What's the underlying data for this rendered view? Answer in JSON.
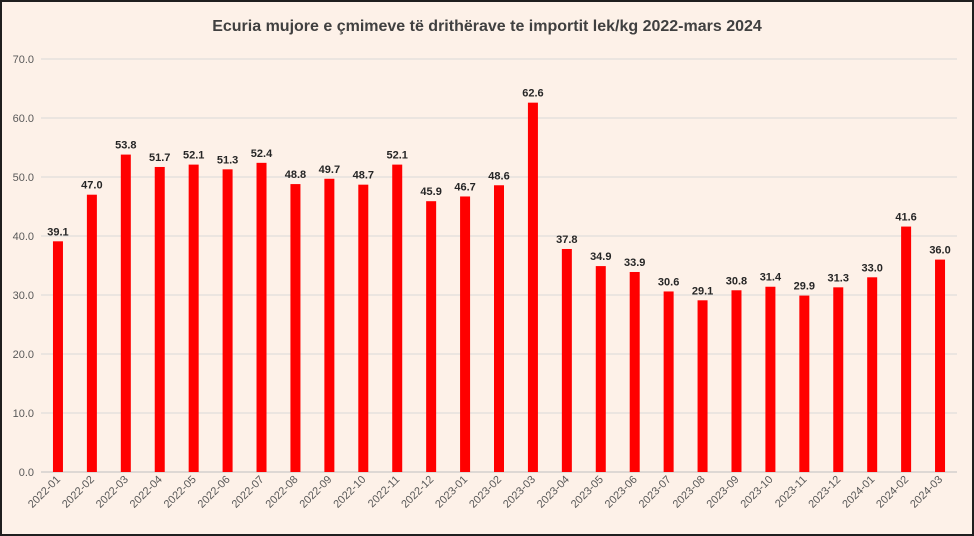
{
  "chart_data": {
    "type": "bar",
    "title": "Ecuria mujore e çmimeve të drithërave te importit lek/kg 2022-mars 2024",
    "xlabel": "",
    "ylabel": "",
    "ylim": [
      0,
      70
    ],
    "yticks": [
      "0.0",
      "10.0",
      "20.0",
      "30.0",
      "40.0",
      "50.0",
      "60.0",
      "70.0"
    ],
    "grid": true,
    "legend": "none",
    "bar_color": "#ff0000",
    "categories": [
      "2022-01",
      "2022-02",
      "2022-03",
      "2022-04",
      "2022-05",
      "2022-06",
      "2022-07",
      "2022-08",
      "2022-09",
      "2022-10",
      "2022-11",
      "2022-12",
      "2023-01",
      "2023-02",
      "2023-03",
      "2023-04",
      "2023-05",
      "2023-06",
      "2023-07",
      "2023-08",
      "2023-09",
      "2023-10",
      "2023-11",
      "2023-12",
      "2024-01",
      "2024-02",
      "2024-03"
    ],
    "values": [
      39.1,
      47.0,
      53.8,
      51.7,
      52.1,
      51.3,
      52.4,
      48.8,
      49.7,
      48.7,
      52.1,
      45.9,
      46.7,
      48.6,
      62.6,
      37.8,
      34.9,
      33.9,
      30.6,
      29.1,
      30.8,
      31.4,
      29.9,
      31.3,
      33.0,
      41.6,
      36.0
    ],
    "data_labels": [
      "39.1",
      "47.0",
      "53.8",
      "51.7",
      "52.1",
      "51.3",
      "52.4",
      "48.8",
      "49.7",
      "48.7",
      "52.1",
      "45.9",
      "46.7",
      "48.6",
      "62.6",
      "37.8",
      "34.9",
      "33.9",
      "30.6",
      "29.1",
      "30.8",
      "31.4",
      "29.9",
      "31.3",
      "33.0",
      "41.6",
      "36.0"
    ]
  }
}
